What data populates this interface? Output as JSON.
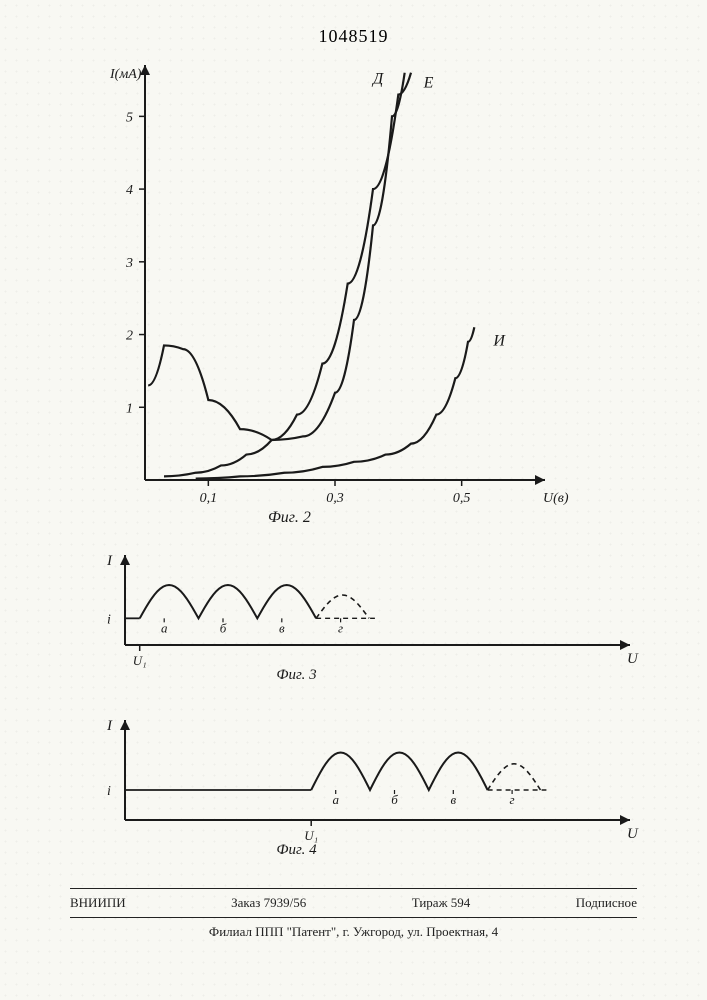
{
  "doc_number": "1048519",
  "fig2": {
    "type": "line",
    "title": "Фиг. 2",
    "xlabel": "U(в)",
    "ylabel": "I(мA)",
    "xlim": [
      0,
      0.6
    ],
    "ylim": [
      0,
      5.5
    ],
    "xticks": [
      0.1,
      0.3,
      0.5
    ],
    "xtick_labels": [
      "0,1",
      "0,3",
      "0,5"
    ],
    "yticks": [
      1,
      2,
      3,
      4,
      5
    ],
    "ytick_labels": [
      "1",
      "2",
      "3",
      "4",
      "5"
    ],
    "axis_color": "#1a1a1a",
    "line_color": "#1a1a1a",
    "line_width": 2.2,
    "label_fontsize": 14,
    "series": {
      "D": {
        "label": "Д",
        "points": [
          [
            0.005,
            1.3
          ],
          [
            0.03,
            1.85
          ],
          [
            0.06,
            1.8
          ],
          [
            0.1,
            1.1
          ],
          [
            0.15,
            0.7
          ],
          [
            0.2,
            0.55
          ],
          [
            0.25,
            0.6
          ],
          [
            0.3,
            1.2
          ],
          [
            0.33,
            2.2
          ],
          [
            0.36,
            3.5
          ],
          [
            0.39,
            5.0
          ],
          [
            0.41,
            5.6
          ]
        ]
      },
      "E": {
        "label": "Е",
        "points": [
          [
            0.03,
            0.05
          ],
          [
            0.08,
            0.1
          ],
          [
            0.12,
            0.2
          ],
          [
            0.16,
            0.35
          ],
          [
            0.2,
            0.55
          ],
          [
            0.24,
            0.9
          ],
          [
            0.28,
            1.6
          ],
          [
            0.32,
            2.7
          ],
          [
            0.36,
            4.0
          ],
          [
            0.4,
            5.3
          ],
          [
            0.42,
            5.6
          ]
        ]
      },
      "I": {
        "label": "И",
        "points": [
          [
            0.08,
            0.02
          ],
          [
            0.15,
            0.05
          ],
          [
            0.22,
            0.1
          ],
          [
            0.28,
            0.18
          ],
          [
            0.33,
            0.25
          ],
          [
            0.38,
            0.35
          ],
          [
            0.42,
            0.5
          ],
          [
            0.46,
            0.9
          ],
          [
            0.49,
            1.4
          ],
          [
            0.51,
            1.9
          ],
          [
            0.52,
            2.1
          ]
        ]
      }
    },
    "curve_labels": {
      "D": {
        "text": "Д",
        "x": 0.36,
        "y": 5.45
      },
      "E": {
        "text": "Е",
        "x": 0.44,
        "y": 5.4
      },
      "I": {
        "text": "И",
        "x": 0.55,
        "y": 1.85
      }
    }
  },
  "fig3": {
    "type": "line",
    "title": "Фиг. 3",
    "xlabel": "U",
    "ylabel": "I",
    "i_label": "i",
    "u1_label": "U₁",
    "baseline_y": 0.4,
    "amplitude": 0.5,
    "period": 0.12,
    "u1": 0.03,
    "xlim": [
      0,
      1.0
    ],
    "ylim": [
      0,
      1.2
    ],
    "axis_color": "#1a1a1a",
    "line_color": "#1a1a1a",
    "dash_color": "#1a1a1a",
    "line_width": 2,
    "letters": [
      "а",
      "б",
      "в",
      "г"
    ],
    "letter_positions": [
      0.08,
      0.2,
      0.32,
      0.44
    ],
    "wave_end": 0.5
  },
  "fig4": {
    "type": "line",
    "title": "Фиг. 4",
    "xlabel": "U",
    "ylabel": "I",
    "i_label": "i",
    "u1_label": "U₁",
    "baseline_y": 0.4,
    "amplitude": 0.5,
    "period": 0.12,
    "u1": 0.38,
    "xlim": [
      0,
      1.0
    ],
    "ylim": [
      0,
      1.2
    ],
    "axis_color": "#1a1a1a",
    "line_color": "#1a1a1a",
    "dash_color": "#1a1a1a",
    "line_width": 2,
    "letters": [
      "а",
      "б",
      "в",
      "г"
    ],
    "letter_positions": [
      0.43,
      0.55,
      0.67,
      0.79
    ],
    "wave_end": 0.85
  },
  "footer": {
    "org": "ВНИИПИ",
    "order": "Заказ 7939/56",
    "tirage": "Тираж 594",
    "sub": "Подписное",
    "branch": "Филиал ППП \"Патент\", г. Ужгород, ул. Проектная, 4"
  },
  "colors": {
    "paper": "#f8f8f3",
    "ink": "#1a1a1a"
  }
}
